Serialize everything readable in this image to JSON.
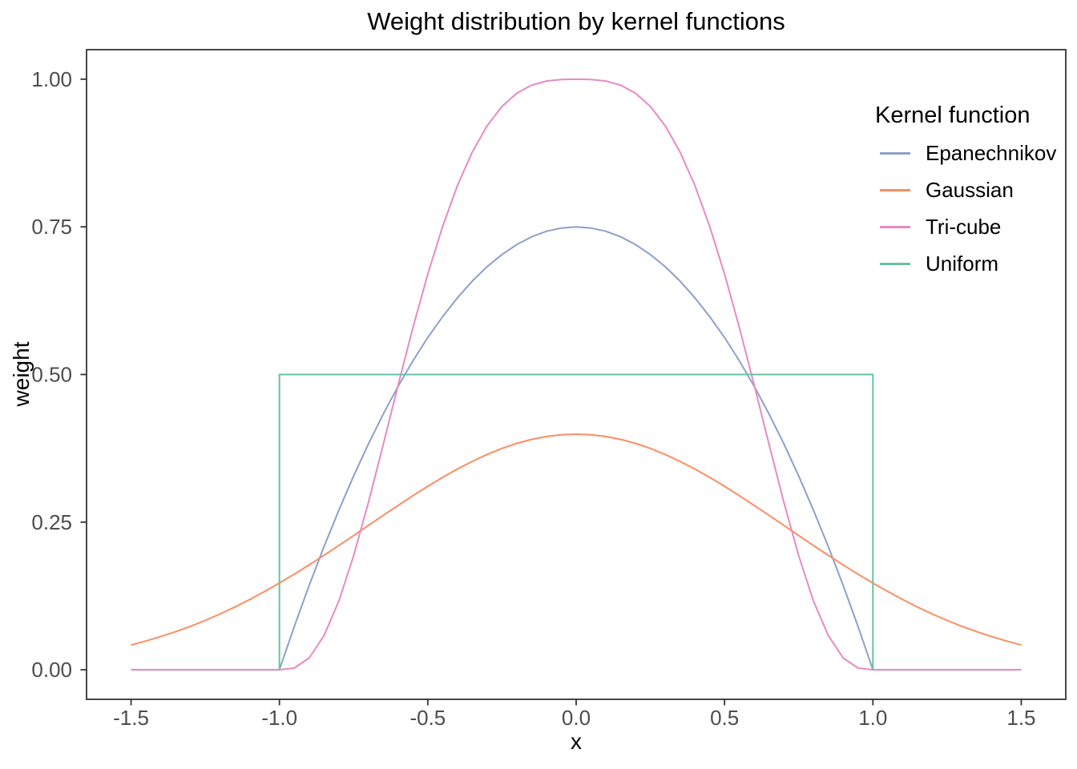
{
  "figure": {
    "background": "#ffffff"
  },
  "chart_data": {
    "type": "line",
    "title": "Weight distribution by kernel functions",
    "xlabel": "x",
    "ylabel": "weight",
    "xlim": [
      -1.65,
      1.65
    ],
    "ylim": [
      -0.05,
      1.05
    ],
    "grid": false,
    "panel_border_color": "#333333",
    "tick_color": "#333333",
    "tick_label_color": "#4d4d4d",
    "x_ticks": [
      {
        "v": -1.5,
        "label": "-1.5"
      },
      {
        "v": -1.0,
        "label": "-1.0"
      },
      {
        "v": -0.5,
        "label": "-0.5"
      },
      {
        "v": 0.0,
        "label": "0.0"
      },
      {
        "v": 0.5,
        "label": "0.5"
      },
      {
        "v": 1.0,
        "label": "1.0"
      },
      {
        "v": 1.5,
        "label": "1.5"
      }
    ],
    "y_ticks": [
      {
        "v": 0.0,
        "label": "0.00"
      },
      {
        "v": 0.25,
        "label": "0.25"
      },
      {
        "v": 0.5,
        "label": "0.50"
      },
      {
        "v": 0.75,
        "label": "0.75"
      },
      {
        "v": 1.0,
        "label": "1.00"
      }
    ],
    "legend": {
      "title": "Kernel function",
      "position": "inside-top-right"
    },
    "x": [
      -1.5,
      -1.45,
      -1.4,
      -1.35,
      -1.3,
      -1.25,
      -1.2,
      -1.15,
      -1.1,
      -1.05,
      -1,
      -0.95,
      -0.9,
      -0.85,
      -0.8,
      -0.75,
      -0.7,
      -0.65,
      -0.6,
      -0.55,
      -0.5,
      -0.45,
      -0.4,
      -0.35,
      -0.3,
      -0.25,
      -0.2,
      -0.15,
      -0.1,
      -0.05,
      0,
      0.05,
      0.1,
      0.15,
      0.2,
      0.25,
      0.3,
      0.35,
      0.4,
      0.45,
      0.5,
      0.55,
      0.6,
      0.65,
      0.7,
      0.75,
      0.8,
      0.85,
      0.9,
      0.95,
      1,
      1.05,
      1.1,
      1.15,
      1.2,
      1.25,
      1.3,
      1.35,
      1.4,
      1.45,
      1.5
    ],
    "series": [
      {
        "name": "Epanechnikov",
        "color": "#8DA0CB",
        "y": [
          0,
          0,
          0,
          0,
          0,
          0,
          0,
          0,
          0,
          0,
          0,
          0.0731,
          0.1425,
          0.2081,
          0.27,
          0.3281,
          0.3825,
          0.4331,
          0.48,
          0.5231,
          0.5625,
          0.5981,
          0.63,
          0.6581,
          0.6825,
          0.7031,
          0.72,
          0.7331,
          0.7425,
          0.748,
          0.75,
          0.748,
          0.7425,
          0.7331,
          0.72,
          0.7031,
          0.6825,
          0.6581,
          0.63,
          0.5981,
          0.5625,
          0.5231,
          0.48,
          0.4331,
          0.3825,
          0.3281,
          0.27,
          0.2081,
          0.1425,
          0.0731,
          0,
          0,
          0,
          0,
          0,
          0,
          0,
          0,
          0,
          0,
          0
        ]
      },
      {
        "name": "Gaussian",
        "color": "#FC8D62",
        "y": [
          0.042,
          0.0487,
          0.0562,
          0.0645,
          0.0736,
          0.0836,
          0.0945,
          0.1063,
          0.119,
          0.1325,
          0.1468,
          0.1618,
          0.1775,
          0.1937,
          0.2103,
          0.2273,
          0.2444,
          0.2615,
          0.2783,
          0.2948,
          0.3107,
          0.3258,
          0.34,
          0.3529,
          0.3646,
          0.3748,
          0.3833,
          0.3901,
          0.395,
          0.3979,
          0.3989,
          0.3979,
          0.395,
          0.3901,
          0.3833,
          0.3748,
          0.3646,
          0.3529,
          0.34,
          0.3258,
          0.3107,
          0.2948,
          0.2783,
          0.2615,
          0.2444,
          0.2273,
          0.2103,
          0.1937,
          0.1775,
          0.1618,
          0.1468,
          0.1325,
          0.119,
          0.1063,
          0.0945,
          0.0836,
          0.0736,
          0.0645,
          0.0562,
          0.0487,
          0.042
        ]
      },
      {
        "name": "Tri-cube",
        "color": "#E78AC3",
        "y": [
          0,
          0,
          0,
          0,
          0,
          0,
          0,
          0,
          0,
          0,
          0,
          0.0029,
          0.0199,
          0.0575,
          0.1162,
          0.1932,
          0.2836,
          0.3817,
          0.4819,
          0.5793,
          0.6699,
          0.7508,
          0.8203,
          0.8768,
          0.9212,
          0.9538,
          0.9762,
          0.9899,
          0.997,
          0.9996,
          1,
          0.9996,
          0.997,
          0.9899,
          0.9762,
          0.9538,
          0.9212,
          0.8768,
          0.8203,
          0.7508,
          0.6699,
          0.5793,
          0.4819,
          0.3817,
          0.2836,
          0.1932,
          0.1162,
          0.0575,
          0.0199,
          0.0029,
          0,
          0,
          0,
          0,
          0,
          0,
          0,
          0,
          0,
          0,
          0
        ]
      },
      {
        "name": "Uniform",
        "color": "#66C2A5",
        "points": [
          [
            -1,
            0
          ],
          [
            -1,
            0.5
          ],
          [
            1,
            0.5
          ],
          [
            1,
            0
          ]
        ]
      }
    ]
  }
}
